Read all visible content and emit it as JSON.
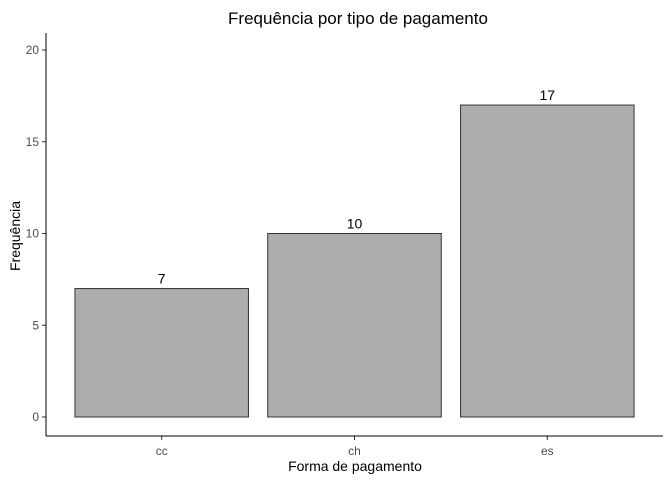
{
  "chart_data": {
    "type": "bar",
    "title": "Frequência por tipo de pagamento",
    "xlabel": "Forma de pagamento",
    "ylabel": "Frequência",
    "categories": [
      "cc",
      "ch",
      "es"
    ],
    "values": [
      7,
      10,
      17
    ],
    "data_labels": [
      "7",
      "10",
      "17"
    ],
    "ylim": [
      0,
      21
    ],
    "yticks": [
      0,
      5,
      10,
      15,
      20
    ],
    "grid": false,
    "legend": "none",
    "bar_fill": "#adadad",
    "bar_stroke": "#333333"
  }
}
